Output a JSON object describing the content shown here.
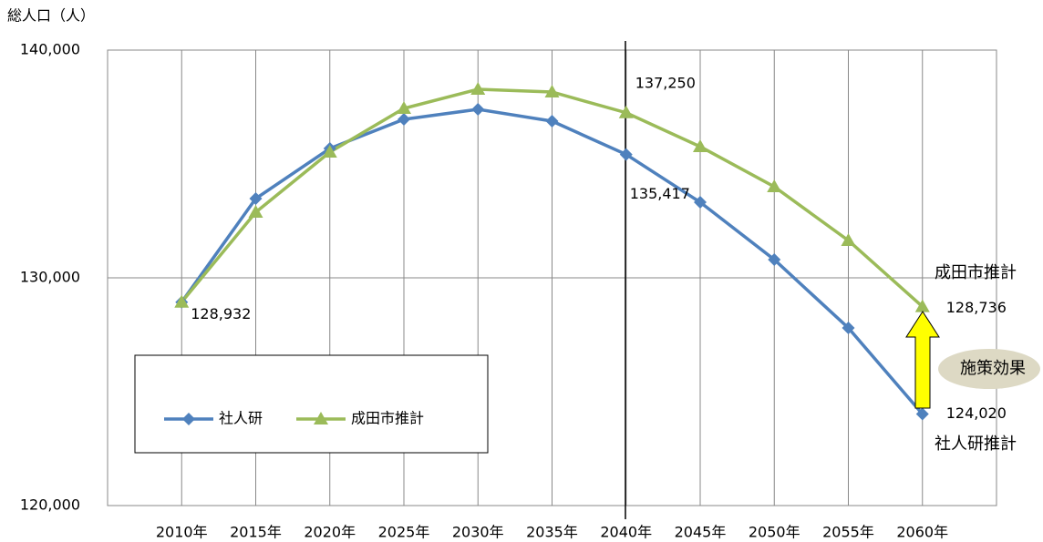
{
  "chart_data": {
    "type": "line",
    "y_label": "総人口（人）",
    "categories": [
      "2010年",
      "2015年",
      "2020年",
      "2025年",
      "2030年",
      "2035年",
      "2040年",
      "2045年",
      "2050年",
      "2055年",
      "2060年"
    ],
    "series": [
      {
        "name": "社人研",
        "color": "#4f81bd",
        "marker": "diamond",
        "values": [
          128932,
          133480,
          135680,
          136960,
          137400,
          136880,
          135417,
          133320,
          130800,
          127800,
          124020
        ],
        "value_labels": [
          "128,932",
          null,
          null,
          null,
          null,
          null,
          "135,417",
          null,
          null,
          null,
          "124,020"
        ]
      },
      {
        "name": "成田市推計",
        "color": "#9bbb59",
        "marker": "triangle",
        "values": [
          128932,
          132880,
          135520,
          137440,
          138280,
          138160,
          137250,
          135760,
          134000,
          131640,
          128736
        ],
        "value_labels": [
          null,
          null,
          null,
          null,
          null,
          null,
          "137,250",
          null,
          null,
          null,
          "128,736"
        ]
      }
    ],
    "ylim": [
      120000,
      140000
    ],
    "yticks": [
      {
        "value": 120000,
        "label": "120,000"
      },
      {
        "value": 130000,
        "label": "130,000"
      },
      {
        "value": 140000,
        "label": "140,000"
      }
    ],
    "grid": true,
    "annotations": [
      "成田市推計",
      "社人研推計",
      "施策効果"
    ]
  }
}
